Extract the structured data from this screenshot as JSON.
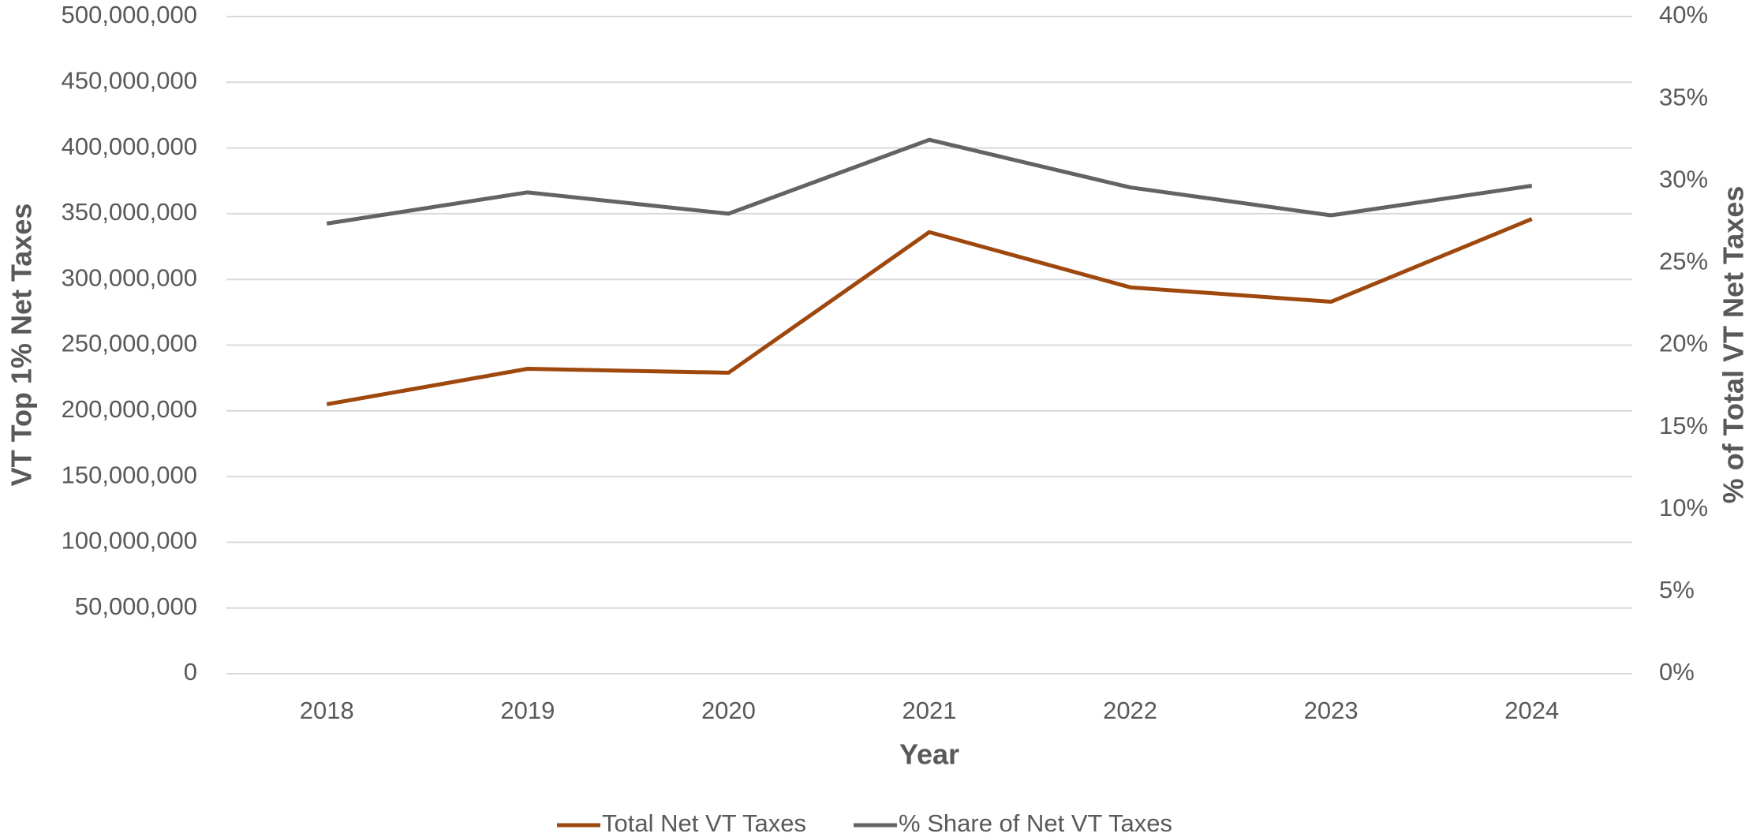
{
  "chart_data": {
    "type": "line",
    "x_label": "Year",
    "y_label": "VT Top 1% Net Taxes",
    "y2_label": "% of Total VT Net Taxes",
    "categories": [
      "2018",
      "2019",
      "2020",
      "2021",
      "2022",
      "2023",
      "2024"
    ],
    "series": [
      {
        "name": "Total Net VT Taxes",
        "color": "#9e480e",
        "values": [
          205000000,
          232000000,
          229000000,
          336000000,
          294000000,
          283000000,
          346000000
        ]
      },
      {
        "name": "% Share of Net VT Taxes",
        "color": "#636363",
        "axis": "y2",
        "values": [
          27.4,
          29.3,
          28.0,
          32.5,
          29.6,
          27.9,
          29.7
        ]
      }
    ],
    "ylim": [
      0,
      500000000
    ],
    "yticks": [
      {
        "value": 0,
        "label": "0"
      },
      {
        "value": 50000000,
        "label": "50,000,000"
      },
      {
        "value": 100000000,
        "label": "100,000,000"
      },
      {
        "value": 150000000,
        "label": "150,000,000"
      },
      {
        "value": 200000000,
        "label": "200,000,000"
      },
      {
        "value": 250000000,
        "label": "250,000,000"
      },
      {
        "value": 300000000,
        "label": "300,000,000"
      },
      {
        "value": 350000000,
        "label": "350,000,000"
      },
      {
        "value": 400000000,
        "label": "400,000,000"
      },
      {
        "value": 450000000,
        "label": "450,000,000"
      },
      {
        "value": 500000000,
        "label": "500,000,000"
      }
    ],
    "y2lim": [
      0,
      40
    ],
    "y2ticks": [
      {
        "value": 0,
        "label": "0%"
      },
      {
        "value": 5,
        "label": "5%"
      },
      {
        "value": 10,
        "label": "10%"
      },
      {
        "value": 15,
        "label": "15%"
      },
      {
        "value": 20,
        "label": "20%"
      },
      {
        "value": 25,
        "label": "25%"
      },
      {
        "value": 30,
        "label": "30%"
      },
      {
        "value": 35,
        "label": "35%"
      },
      {
        "value": 40,
        "label": "40%"
      }
    ],
    "grid": true,
    "legend": "bottom"
  }
}
